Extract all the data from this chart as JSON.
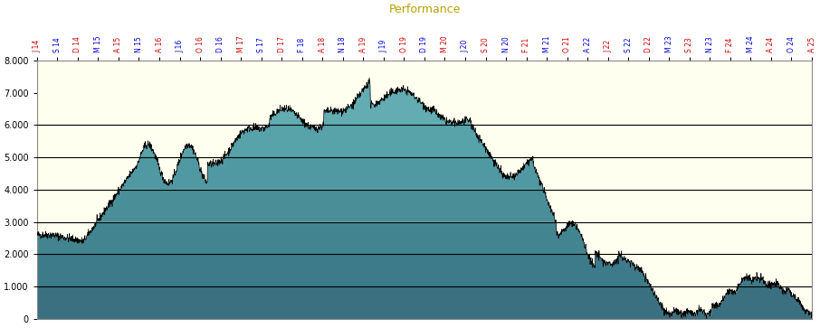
{
  "title": "Performance",
  "title_color": "#b8a000",
  "title_fontsize": 9,
  "background_color": "#ffffff",
  "plot_bg_color": "#fffff0",
  "area_fill_color": "#5f9ea8",
  "area_edge_color": "#000000",
  "ylim": [
    0,
    8000
  ],
  "yticks": [
    0,
    1000,
    2000,
    3000,
    4000,
    5000,
    6000,
    7000,
    8000
  ],
  "ytick_labels": [
    "0",
    "1.000",
    "2.000",
    "3.000",
    "4.000",
    "5.000",
    "6.000",
    "7.000",
    "8.000"
  ],
  "hlines": [
    1000,
    2000,
    3000,
    4000,
    5000,
    6000
  ],
  "hline_color": "#000000",
  "hline_lw": 0.8,
  "x_tick_color_0": "#cc0000",
  "x_tick_color_1": "#0000cc",
  "x_labels": [
    "J 14",
    "S 14",
    "D 14",
    "M 15",
    "A 15",
    "N 15",
    "A 16",
    "J 16",
    "O 16",
    "D 16",
    "M 17",
    "S 17",
    "D 17",
    "F 18",
    "A 18",
    "N 18",
    "A 19",
    "J 19",
    "O 19",
    "D 19",
    "M 20",
    "J 20",
    "S 20",
    "N 20",
    "F 21",
    "M 21",
    "O 21",
    "A 22",
    "J 22",
    "S 22",
    "D 22",
    "M 23",
    "S 23",
    "N 23",
    "F 24",
    "M 24",
    "A 24",
    "O 24",
    "A 25"
  ],
  "band_colors": [
    "#3a7080",
    "#3d7a8a",
    "#428590",
    "#4a8f98",
    "#5099a2",
    "#58a2aa",
    "#62acb2"
  ],
  "band_levels": [
    0,
    1000,
    2000,
    3000,
    4000,
    5000,
    6000,
    8000
  ]
}
